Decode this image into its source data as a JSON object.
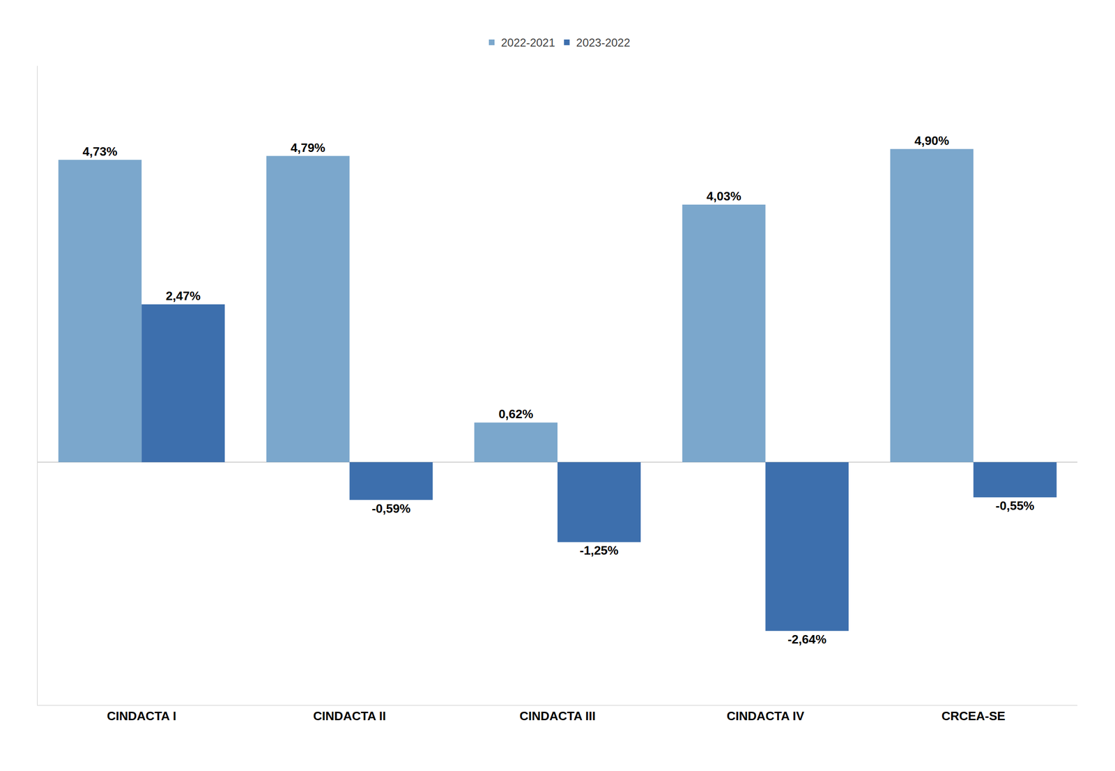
{
  "chart_data": {
    "type": "bar",
    "categories": [
      "CINDACTA I",
      "CINDACTA II",
      "CINDACTA III",
      "CINDACTA IV",
      "CRCEA-SE"
    ],
    "series": [
      {
        "name": "2022-2021",
        "color": "#7BA7CC",
        "values": [
          4.73,
          4.79,
          0.62,
          4.03,
          4.9
        ],
        "value_labels": [
          "4,73%",
          "4,79%",
          "0,62%",
          "4,03%",
          "4,90%"
        ]
      },
      {
        "name": "2023-2022",
        "color": "#3D6FAD",
        "values": [
          2.47,
          -0.59,
          -1.25,
          -2.64,
          -0.55
        ],
        "value_labels": [
          "2,47%",
          "-0,59%",
          "-1,25%",
          "-2,64%",
          "-0,55%"
        ]
      }
    ],
    "ylim": [
      -3.8,
      6.2
    ],
    "grid": false,
    "legend": "top",
    "data_labels": true,
    "tick_labels": "x"
  }
}
